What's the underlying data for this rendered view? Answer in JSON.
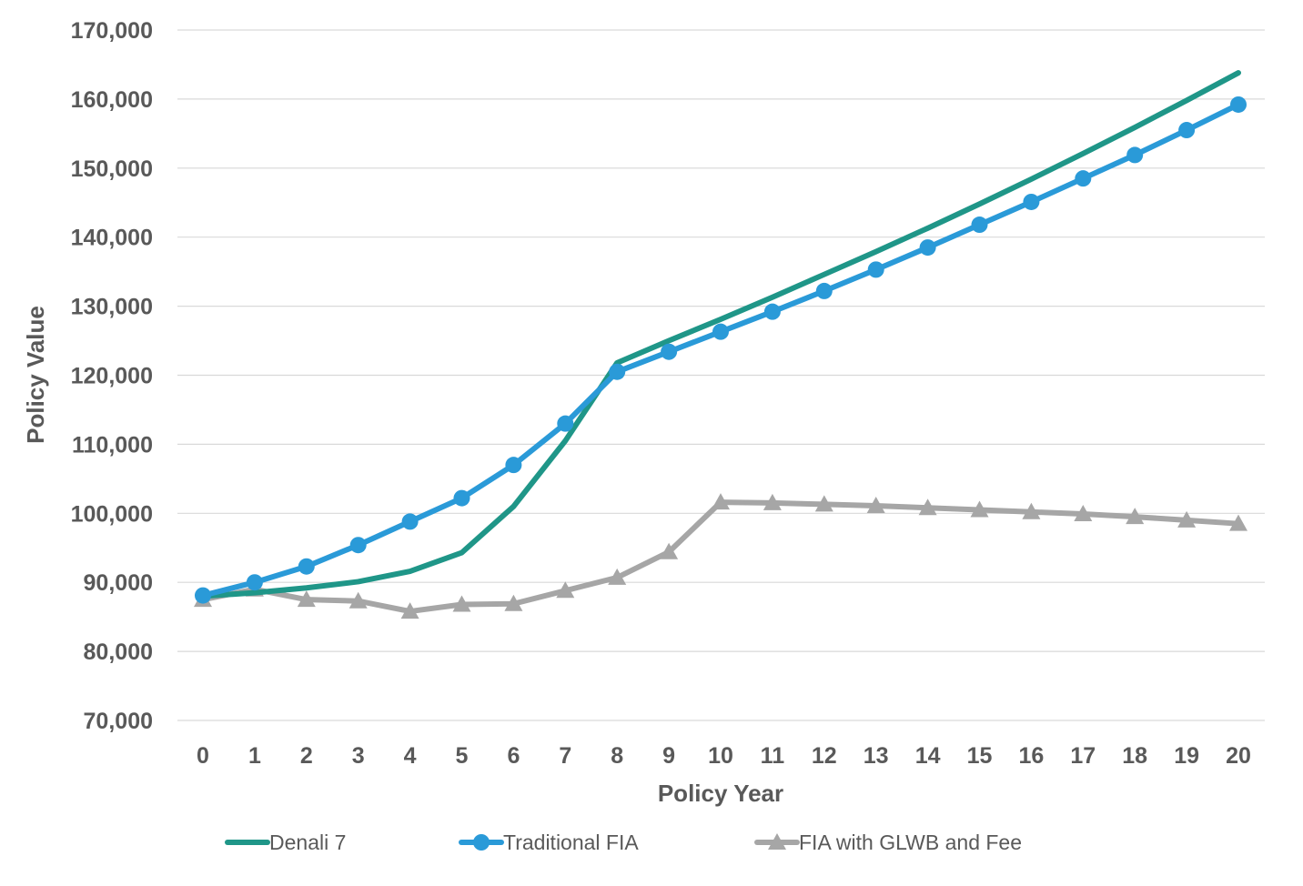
{
  "chart_data": {
    "type": "line",
    "title": "",
    "xlabel": "Policy Year",
    "ylabel": "Policy Value",
    "ylim": [
      70000,
      170000
    ],
    "yticks": [
      70000,
      80000,
      90000,
      100000,
      110000,
      120000,
      130000,
      140000,
      150000,
      160000,
      170000
    ],
    "ytick_labels": [
      "70,000",
      "80,000",
      "90,000",
      "100,000",
      "110,000",
      "120,000",
      "130,000",
      "140,000",
      "150,000",
      "160,000",
      "170,000"
    ],
    "x": [
      0,
      1,
      2,
      3,
      4,
      5,
      6,
      7,
      8,
      9,
      10,
      11,
      12,
      13,
      14,
      15,
      16,
      17,
      18,
      19,
      20
    ],
    "xtick_labels": [
      "0",
      "1",
      "2",
      "3",
      "4",
      "5",
      "6",
      "7",
      "8",
      "9",
      "10",
      "11",
      "12",
      "13",
      "14",
      "15",
      "16",
      "17",
      "18",
      "19",
      "20"
    ],
    "grid": true,
    "legend_position": "bottom",
    "series": [
      {
        "name": "Denali 7",
        "color": "#1f9688",
        "marker": "none",
        "values": [
          88000,
          88500,
          89200,
          90100,
          91600,
          94300,
          101000,
          110500,
          121800,
          125000,
          128100,
          131300,
          134600,
          137900,
          141300,
          144800,
          148400,
          152100,
          155900,
          159800,
          163800
        ]
      },
      {
        "name": "Traditional FIA",
        "color": "#2a9ad8",
        "marker": "circle",
        "values": [
          88100,
          90000,
          92300,
          95400,
          98800,
          102200,
          107000,
          113000,
          120500,
          123400,
          126300,
          129200,
          132200,
          135300,
          138500,
          141800,
          145100,
          148500,
          151900,
          155500,
          159200
        ]
      },
      {
        "name": "FIA with GLWB and Fee",
        "color": "#a6a6a6",
        "marker": "triangle",
        "values": [
          87500,
          89000,
          87500,
          87300,
          85800,
          86800,
          86900,
          88800,
          90700,
          94400,
          101600,
          101500,
          101300,
          101100,
          100800,
          100500,
          100200,
          99900,
          99500,
          99000,
          98500
        ]
      }
    ]
  }
}
